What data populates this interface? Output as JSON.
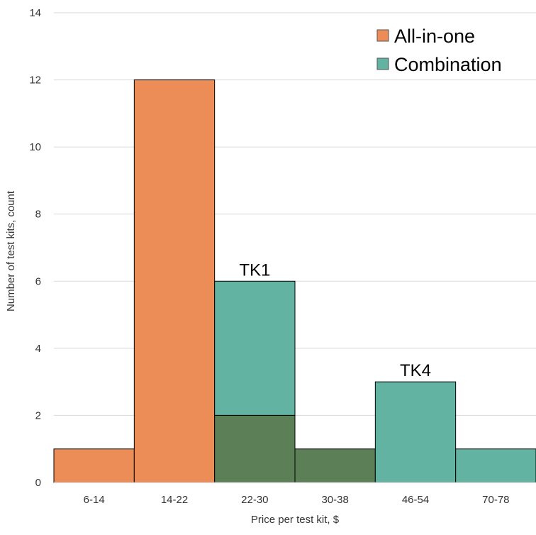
{
  "chart_data": {
    "type": "bar",
    "title": "",
    "xlabel": "Price per test kit, $",
    "ylabel": "Number of test kits, count",
    "categories": [
      "6-14",
      "14-22",
      "22-30",
      "30-38",
      "46-54",
      "70-78"
    ],
    "ylim": [
      0,
      14
    ],
    "yticks": [
      "0",
      "2",
      "4",
      "6",
      "8",
      "10",
      "12",
      "14"
    ],
    "grid": true,
    "legend_position": "top-right",
    "overlap_color": "#5c7f58",
    "series": [
      {
        "name": "All-in-one",
        "color": "#ec8c57",
        "values": [
          1,
          12,
          2,
          1,
          0,
          0
        ]
      },
      {
        "name": "Combination",
        "color": "#63b3a2",
        "values": [
          0,
          0,
          6,
          1,
          3,
          1
        ]
      }
    ],
    "annotations": [
      {
        "text": "TK1",
        "category": "22-30",
        "value": 6
      },
      {
        "text": "TK4",
        "category": "46-54",
        "value": 3
      }
    ]
  }
}
